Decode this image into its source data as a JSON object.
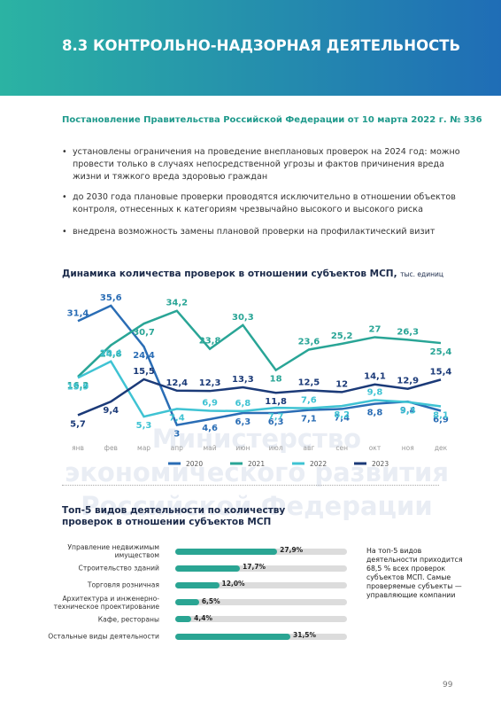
{
  "header": {
    "title": "8.3 КОНТРОЛЬНО-НАДЗОРНАЯ ДЕЯТЕЛЬНОСТЬ"
  },
  "subtitle": "Постановление Правительства Российской Федерации от 10 марта 2022 г. № 336",
  "bullets": [
    "установлены ограничения на проведение внеплановых проверок на 2024 год: можно провести только в случаях непосредственной угрозы и фактов причинения вреда жизни и тяжкого вреда здоровью граждан",
    "до 2030 года плановые проверки проводятся исключительно в отношении объектов контроля, отнесенных к категориям чрезвычайно высокого и высокого риска",
    "внедрена возможность замены плановой проверки на профилактический визит"
  ],
  "watermark": "Министерство экономического развития Российской Федерации",
  "chart_data": [
    {
      "type": "line",
      "title": "Динамика количества проверок в отношении субъектов МСП,",
      "unit": "тыс. единиц",
      "categories": [
        "янв",
        "фев",
        "мар",
        "апр",
        "май",
        "июн",
        "июл",
        "авг",
        "сен",
        "окт",
        "ноя",
        "дек"
      ],
      "ylim": [
        0,
        38
      ],
      "series": [
        {
          "name": "2020",
          "color": "#2a6db5",
          "values": [
            31.4,
            35.6,
            24.4,
            3,
            4.6,
            6.3,
            6.3,
            7.1,
            7.4,
            8.8,
            9.4,
            6.9
          ],
          "value_labels": [
            "31,4",
            "35,6",
            "24,4",
            "3",
            "4,6",
            "6,3",
            "6,3",
            "7,1",
            "7,4",
            "8,8",
            "9,4",
            "6,9"
          ]
        },
        {
          "name": "2021",
          "color": "#29a596",
          "values": [
            16.2,
            24.8,
            30.7,
            34.2,
            23.8,
            30.3,
            18,
            23.6,
            25.2,
            27,
            26.3,
            25.4
          ],
          "value_labels": [
            "16,2",
            "24,8",
            "30,7",
            "34,2",
            "23,8",
            "30,3",
            "18",
            "23,6",
            "25,2",
            "27",
            "26,3",
            "25,4"
          ]
        },
        {
          "name": "2022",
          "color": "#3fc3d3",
          "values": [
            15.9,
            20.4,
            5.3,
            7.4,
            6.9,
            6.8,
            7.7,
            7.6,
            8.2,
            9.8,
            9.3,
            8.1
          ],
          "value_labels": [
            "15,9",
            "20,4",
            "5,3",
            "7,4",
            "6,9",
            "6,8",
            "7,7",
            "7,6",
            "8,2",
            "9,8",
            "9,3",
            "8,1"
          ]
        },
        {
          "name": "2023",
          "color": "#1b3a78",
          "values": [
            5.7,
            9.4,
            15.5,
            12.4,
            12.3,
            13.3,
            11.8,
            12.5,
            12,
            14.1,
            12.9,
            15.4
          ],
          "value_labels": [
            "5,7",
            "9,4",
            "15,5",
            "12,4",
            "12,3",
            "13,3",
            "11,8",
            "12,5",
            "12",
            "14,1",
            "12,9",
            "15,4"
          ]
        }
      ]
    },
    {
      "type": "bar",
      "title": "Топ-5 видов деятельности по количеству проверок в отношении субъектов МСП",
      "categories": [
        "Управление недвижимым имуществом",
        "Строительство зданий",
        "Торговля розничная",
        "Архитектура и инженерно-техническое проектирование",
        "Кафе, рестораны",
        "Остальные виды деятельности"
      ],
      "values": [
        27.9,
        17.7,
        12.0,
        6.5,
        4.4,
        31.5
      ],
      "value_labels": [
        "27,9%",
        "17,7%",
        "12,0%",
        "6,5%",
        "4,4%",
        "31,5%"
      ],
      "xlim": [
        0,
        47
      ],
      "color": "#2aa593",
      "track_color": "#dcdcdc"
    }
  ],
  "note": "На топ-5 видов деятельности приходится 68,5 % всех проверок субъектов МСП. Самые проверяемые субъекты — управляющие компании",
  "page_number": "99"
}
